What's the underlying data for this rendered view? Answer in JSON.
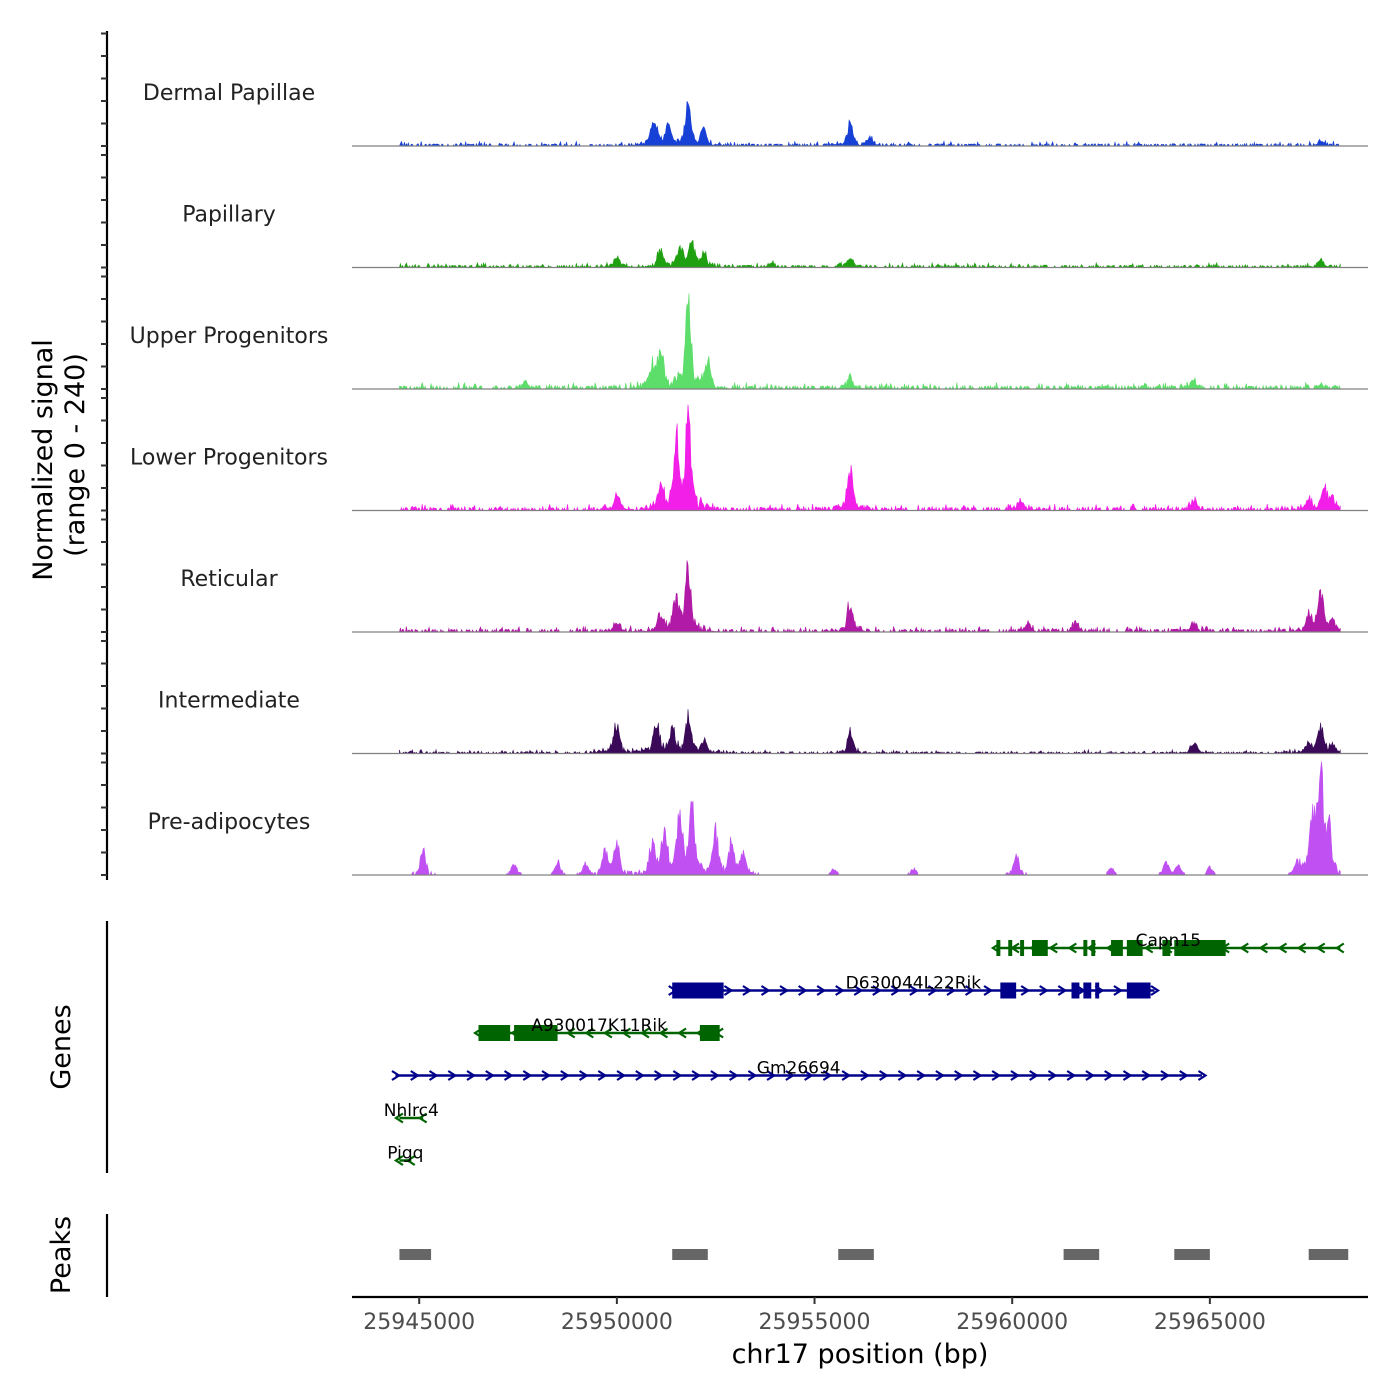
{
  "chart_data": {
    "type": "area",
    "y_axis_title_line1": "Normalized signal",
    "y_axis_title_line2": "(range 0 - 240)",
    "ylim": [
      0,
      240
    ],
    "xlim": [
      25943300,
      25969000
    ],
    "x_axis_title": "chr17 position (bp)",
    "x_ticks": [
      25945000,
      25950000,
      25955000,
      25960000,
      25965000
    ],
    "x_tick_labels": [
      "25945000",
      "25950000",
      "25955000",
      "25960000",
      "25965000"
    ],
    "signal_range": [
      25944500,
      25968300
    ],
    "tracks": [
      {
        "name": "Dermal Papillae",
        "color": "#1740D6",
        "base_level": 5,
        "peaks": [
          [
            25951800,
            95
          ],
          [
            25951300,
            45
          ],
          [
            25950900,
            35
          ],
          [
            25951000,
            25
          ],
          [
            25952200,
            35
          ],
          [
            25955900,
            45
          ],
          [
            25956400,
            18
          ],
          [
            25967800,
            12
          ]
        ]
      },
      {
        "name": "Papillary",
        "color": "#1EA010",
        "base_level": 5,
        "peaks": [
          [
            25951100,
            45
          ],
          [
            25951600,
            45
          ],
          [
            25951900,
            55
          ],
          [
            25952200,
            30
          ],
          [
            25950000,
            25
          ],
          [
            25955900,
            22
          ],
          [
            25953900,
            12
          ],
          [
            25967800,
            18
          ]
        ]
      },
      {
        "name": "Upper Progenitors",
        "color": "#5DDD6A",
        "base_level": 7,
        "peaks": [
          [
            25951800,
            200
          ],
          [
            25951100,
            90
          ],
          [
            25952300,
            55
          ],
          [
            25950900,
            45
          ],
          [
            25955900,
            25
          ],
          [
            25964600,
            18
          ],
          [
            25947700,
            15
          ],
          [
            25967800,
            10
          ]
        ]
      },
      {
        "name": "Lower Progenitors",
        "color": "#F21FE8",
        "base_level": 7,
        "peaks": [
          [
            25951800,
            210
          ],
          [
            25951500,
            165
          ],
          [
            25951100,
            65
          ],
          [
            25950000,
            35
          ],
          [
            25955900,
            100
          ],
          [
            25960200,
            25
          ],
          [
            25964600,
            25
          ],
          [
            25967900,
            50
          ],
          [
            25967500,
            30
          ],
          [
            25968100,
            25
          ]
        ]
      },
      {
        "name": "Reticular",
        "color": "#B01AA6",
        "base_level": 6,
        "peaks": [
          [
            25951800,
            150
          ],
          [
            25951500,
            75
          ],
          [
            25951100,
            40
          ],
          [
            25950000,
            25
          ],
          [
            25955900,
            70
          ],
          [
            25961600,
            25
          ],
          [
            25960400,
            18
          ],
          [
            25964600,
            22
          ],
          [
            25967800,
            95
          ],
          [
            25967500,
            35
          ],
          [
            25968100,
            25
          ]
        ]
      },
      {
        "name": "Intermediate",
        "color": "#3A0A58",
        "base_level": 4,
        "peaks": [
          [
            25950000,
            65
          ],
          [
            25951000,
            70
          ],
          [
            25951400,
            55
          ],
          [
            25951800,
            80
          ],
          [
            25952200,
            30
          ],
          [
            25955900,
            50
          ],
          [
            25964600,
            25
          ],
          [
            25967800,
            65
          ],
          [
            25967500,
            25
          ],
          [
            25968100,
            18
          ]
        ]
      },
      {
        "name": "Pre-adipocytes",
        "color": "#C050F2",
        "base_level": 0,
        "peaks": [
          [
            25967800,
            235
          ],
          [
            25967600,
            130
          ],
          [
            25968000,
            100
          ],
          [
            25951600,
            160
          ],
          [
            25951900,
            150
          ],
          [
            25951200,
            90
          ],
          [
            25952500,
            100
          ],
          [
            25950900,
            75
          ],
          [
            25952900,
            70
          ],
          [
            25950000,
            75
          ],
          [
            25953200,
            55
          ],
          [
            25949700,
            55
          ],
          [
            25949200,
            25
          ],
          [
            25945100,
            55
          ],
          [
            25948500,
            30
          ],
          [
            25947400,
            25
          ],
          [
            25960100,
            45
          ],
          [
            25962500,
            20
          ],
          [
            25963900,
            30
          ],
          [
            25964200,
            20
          ],
          [
            25967200,
            25
          ],
          [
            25955500,
            15
          ],
          [
            25957500,
            15
          ],
          [
            25965000,
            18
          ]
        ]
      }
    ],
    "genes_label": "Genes",
    "genes": [
      {
        "name": "Capn15",
        "strand": "-",
        "start": 25959600,
        "end": 25968300,
        "row": 0,
        "color": "#006400",
        "exons": [
          [
            25959600,
            25959700
          ],
          [
            25959900,
            25960000
          ],
          [
            25960200,
            25960300
          ],
          [
            25960500,
            25960900
          ],
          [
            25961800,
            25961900
          ],
          [
            25962000,
            25962100
          ],
          [
            25962500,
            25962800
          ],
          [
            25962900,
            25963300
          ],
          [
            25963800,
            25964000
          ],
          [
            25964100,
            25965400
          ]
        ]
      },
      {
        "name": "D630044L22Rik",
        "strand": "+",
        "start": 25951400,
        "end": 25963600,
        "row": 1,
        "color": "#00008B",
        "exons": [
          [
            25951400,
            25952700
          ],
          [
            25959700,
            25960100
          ],
          [
            25961500,
            25961700
          ],
          [
            25961800,
            25962000
          ],
          [
            25962100,
            25962200
          ],
          [
            25962900,
            25963500
          ]
        ]
      },
      {
        "name": "A930017K11Rik",
        "strand": "-",
        "start": 25946500,
        "end": 25952600,
        "row": 2,
        "color": "#006400",
        "exons": [
          [
            25946500,
            25947300
          ],
          [
            25947400,
            25948500
          ],
          [
            25952100,
            25952600
          ]
        ]
      },
      {
        "name": "Gm26694",
        "strand": "+",
        "start": 25944400,
        "end": 25964800,
        "row": 3,
        "color": "#00008B",
        "exons": []
      },
      {
        "name": "Nhlrc4",
        "strand": "-",
        "start": 25944500,
        "end": 25945100,
        "row": 4,
        "color": "#006400",
        "exons": []
      },
      {
        "name": "Pigq",
        "strand": "-",
        "start": 25944500,
        "end": 25944800,
        "row": 5,
        "color": "#006400",
        "exons": []
      }
    ],
    "peaks_label": "Peaks",
    "peak_regions": [
      [
        25944500,
        25945300
      ],
      [
        25951400,
        25952300
      ],
      [
        25955600,
        25956500
      ],
      [
        25961300,
        25962200
      ],
      [
        25964100,
        25965000
      ],
      [
        25967500,
        25968500
      ]
    ],
    "peak_color": "#666666"
  }
}
